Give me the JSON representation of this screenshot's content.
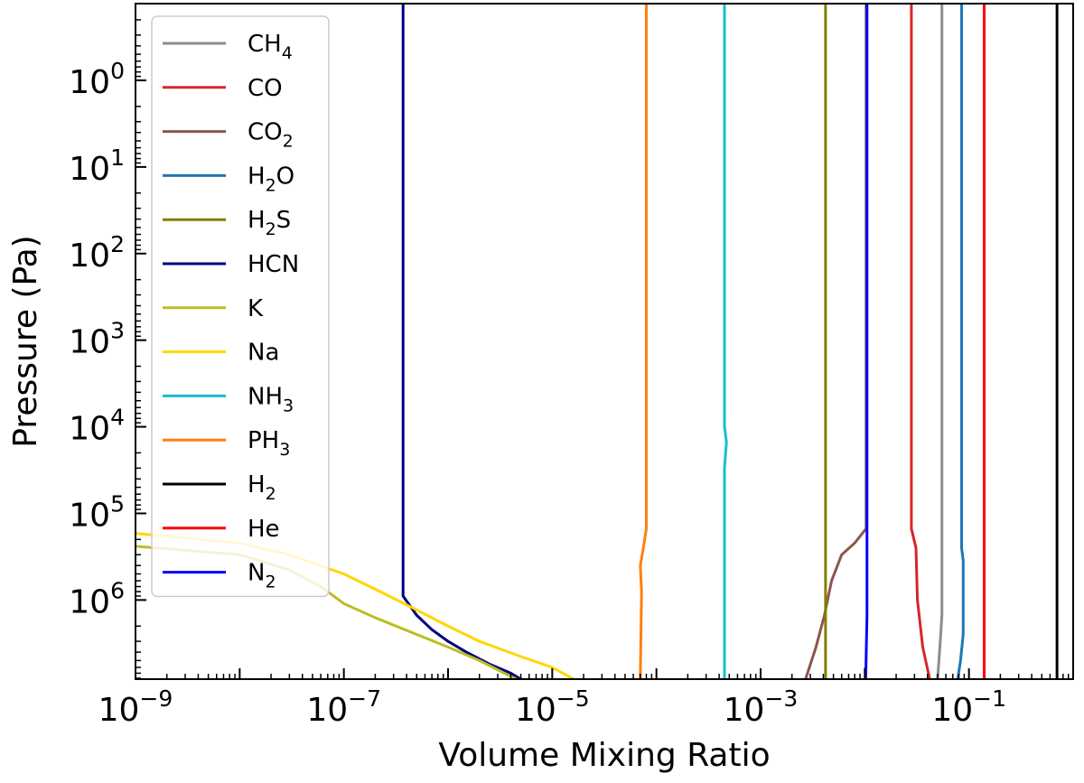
{
  "chart_data": {
    "type": "line",
    "xlabel": "Volume Mixing Ratio",
    "ylabel": "Pressure (Pa)",
    "xscale": "log",
    "yscale": "log",
    "xlim": [
      1e-09,
      1.0
    ],
    "ylim": [
      0.13,
      8200000.0
    ],
    "y_inverted": true,
    "grid": false,
    "legend_position": "upper-left",
    "x_ticks": [
      {
        "value": 1e-09,
        "base": "10",
        "exp": "−9"
      },
      {
        "value": 1e-07,
        "base": "10",
        "exp": "−7"
      },
      {
        "value": 1e-05,
        "base": "10",
        "exp": "−5"
      },
      {
        "value": 0.001,
        "base": "10",
        "exp": "−3"
      },
      {
        "value": 0.1,
        "base": "10",
        "exp": "−1"
      }
    ],
    "y_ticks": [
      {
        "value": 1,
        "base": "10",
        "exp": "0"
      },
      {
        "value": 10,
        "base": "10",
        "exp": "1"
      },
      {
        "value": 100,
        "base": "10",
        "exp": "2"
      },
      {
        "value": 1000,
        "base": "10",
        "exp": "3"
      },
      {
        "value": 10000,
        "base": "10",
        "exp": "4"
      },
      {
        "value": 100000,
        "base": "10",
        "exp": "5"
      },
      {
        "value": 1000000,
        "base": "10",
        "exp": "6"
      }
    ],
    "series": [
      {
        "name": "CH4",
        "base": "CH",
        "sub": "4",
        "color": "#8c8c8c",
        "points": [
          [
            0.055,
            0.13
          ],
          [
            0.055,
            1500000
          ],
          [
            0.053,
            3000000
          ],
          [
            0.05,
            8200000
          ]
        ]
      },
      {
        "name": "CO",
        "base": "CO",
        "sub": "",
        "color": "#d62728",
        "points": [
          [
            0.028,
            0.13
          ],
          [
            0.028,
            150000
          ],
          [
            0.031,
            250000
          ],
          [
            0.032,
            1000000
          ],
          [
            0.036,
            3500000
          ],
          [
            0.042,
            8200000
          ]
        ]
      },
      {
        "name": "CO2",
        "base": "CO",
        "sub": "2",
        "color": "#8c564b",
        "points": [
          [
            0.0103,
            0.13
          ],
          [
            0.0103,
            150000
          ],
          [
            0.008,
            220000
          ],
          [
            0.006,
            300000
          ],
          [
            0.0048,
            600000
          ],
          [
            0.0041,
            1500000
          ],
          [
            0.0034,
            3500000
          ],
          [
            0.0027,
            8200000
          ]
        ]
      },
      {
        "name": "H2O",
        "base": "H",
        "sub": "2O",
        "color": "#1f77b4",
        "points": [
          [
            0.085,
            0.13
          ],
          [
            0.085,
            250000
          ],
          [
            0.088,
            350000
          ],
          [
            0.088,
            2500000
          ],
          [
            0.083,
            5000000
          ],
          [
            0.078,
            8200000
          ]
        ]
      },
      {
        "name": "H2S",
        "base": "H",
        "sub": "2S",
        "color": "#808000",
        "points": [
          [
            0.0042,
            0.13
          ],
          [
            0.0042,
            8200000
          ]
        ]
      },
      {
        "name": "HCN",
        "base": "HCN",
        "sub": "",
        "color": "#000080",
        "points": [
          [
            3.7e-07,
            0.13
          ],
          [
            3.7e-07,
            900000
          ],
          [
            5e-07,
            1500000
          ],
          [
            7e-07,
            2200000
          ],
          [
            1e-06,
            3000000
          ],
          [
            1.5e-06,
            4000000
          ],
          [
            2.5e-06,
            5500000
          ],
          [
            4e-06,
            7000000
          ],
          [
            5e-06,
            8200000
          ]
        ]
      },
      {
        "name": "K",
        "base": "K",
        "sub": "",
        "color": "#bcbd22",
        "points": [
          [
            1e-09,
            240000
          ],
          [
            1e-08,
            300000
          ],
          [
            3e-08,
            450000
          ],
          [
            6e-08,
            700000
          ],
          [
            1e-07,
            1100000
          ],
          [
            2e-07,
            1600000
          ],
          [
            5e-07,
            2500000
          ],
          [
            1e-06,
            3500000
          ],
          [
            2e-06,
            5000000
          ],
          [
            4.5e-06,
            8200000
          ]
        ]
      },
      {
        "name": "Na",
        "base": "Na",
        "sub": "",
        "color": "#ffd700",
        "points": [
          [
            1e-09,
            170000
          ],
          [
            1e-08,
            220000
          ],
          [
            3e-08,
            300000
          ],
          [
            1e-07,
            500000
          ],
          [
            2e-07,
            750000
          ],
          [
            5e-07,
            1300000
          ],
          [
            1e-06,
            2000000
          ],
          [
            2e-06,
            3000000
          ],
          [
            5e-06,
            4500000
          ],
          [
            1e-05,
            6000000
          ],
          [
            1.6e-05,
            8200000
          ]
        ]
      },
      {
        "name": "NH3",
        "base": "NH",
        "sub": "3",
        "color": "#17becf",
        "points": [
          [
            0.00045,
            0.13
          ],
          [
            0.00045,
            10000
          ],
          [
            0.00047,
            15000
          ],
          [
            0.00045,
            30000
          ],
          [
            0.00045,
            8200000
          ]
        ]
      },
      {
        "name": "PH3",
        "base": "PH",
        "sub": "3",
        "color": "#ff7f0e",
        "points": [
          [
            8e-05,
            0.13
          ],
          [
            8e-05,
            150000
          ],
          [
            7.5e-05,
            250000
          ],
          [
            7e-05,
            400000
          ],
          [
            7.2e-05,
            800000
          ],
          [
            7e-05,
            8200000
          ]
        ]
      },
      {
        "name": "H2",
        "base": "H",
        "sub": "2",
        "color": "#000000",
        "points": [
          [
            0.7,
            0.13
          ],
          [
            0.7,
            8200000
          ]
        ]
      },
      {
        "name": "He",
        "base": "He",
        "sub": "",
        "color": "#ff0000",
        "points": [
          [
            0.14,
            0.13
          ],
          [
            0.14,
            8200000
          ]
        ]
      },
      {
        "name": "N2",
        "base": "N",
        "sub": "2",
        "color": "#0000ff",
        "points": [
          [
            0.0105,
            0.13
          ],
          [
            0.0105,
            1500000
          ],
          [
            0.0102,
            8200000
          ]
        ]
      }
    ]
  }
}
